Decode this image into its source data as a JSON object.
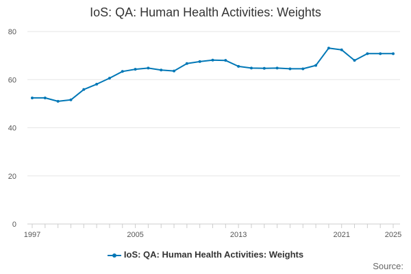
{
  "chart_data": {
    "type": "line",
    "title": "IoS: QA: Human Health Activities: Weights",
    "xlabel": "",
    "ylabel": "",
    "x_range": [
      1997,
      2025
    ],
    "ylim": [
      0,
      80
    ],
    "y_ticks": [
      0,
      20,
      40,
      60,
      80
    ],
    "x_ticks": [
      1997,
      2005,
      2013,
      2021,
      2025
    ],
    "grid": "horizontal",
    "legend_placement": "bottom-center",
    "series": [
      {
        "name": "IoS: QA: Human Health Activities: Weights",
        "color": "#0077b6",
        "x": [
          1997,
          1998,
          1999,
          2000,
          2001,
          2002,
          2003,
          2004,
          2005,
          2006,
          2007,
          2008,
          2009,
          2010,
          2011,
          2012,
          2013,
          2014,
          2015,
          2016,
          2017,
          2018,
          2019,
          2020,
          2021,
          2022,
          2023,
          2024,
          2025
        ],
        "values": [
          52.4,
          52.4,
          51.0,
          51.6,
          55.9,
          58.1,
          60.6,
          63.4,
          64.3,
          64.8,
          64.0,
          63.6,
          66.7,
          67.5,
          68.1,
          68.0,
          65.5,
          64.8,
          64.7,
          64.8,
          64.5,
          64.5,
          65.9,
          73.1,
          72.4,
          68.0,
          70.8,
          70.8,
          70.8
        ]
      }
    ]
  },
  "legend": {
    "label": "IoS: QA: Human Health Activities: Weights"
  },
  "footer": {
    "source_label": "Source:"
  }
}
